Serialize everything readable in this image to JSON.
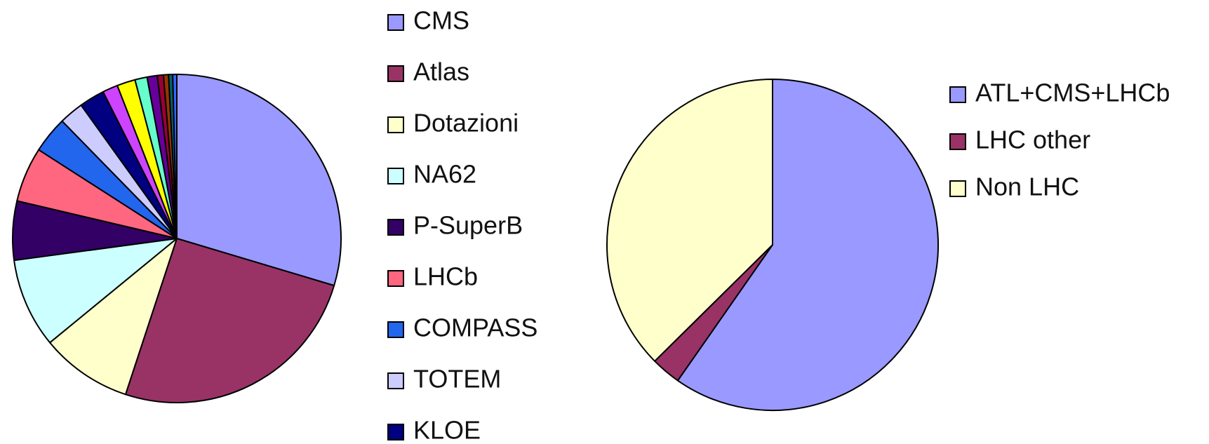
{
  "chart_data": [
    {
      "type": "pie",
      "categories": [
        "CMS",
        "Atlas",
        "Dotazioni",
        "NA62",
        "P-SuperB",
        "LHCb",
        "COMPASS",
        "TOTEM",
        "KLOE",
        null,
        null,
        null,
        null,
        null,
        null,
        null,
        null
      ],
      "values": [
        29.6,
        25.4,
        9,
        8.8,
        5.8,
        5.4,
        3.6,
        2.4,
        2.5,
        1.5,
        1.8,
        1.2,
        1.0,
        0.6,
        0.5,
        0.4,
        0.4
      ],
      "colors": [
        "#9999ff",
        "#993366",
        "#ffffcc",
        "#ccffff",
        "#330066",
        "#ff6680",
        "#2266ee",
        "#ccccff",
        "#000080",
        "#cc44ff",
        "#ffff00",
        "#66ffcc",
        "#660099",
        "#990033",
        "#993300",
        "#006666",
        "#3366ff"
      ]
    },
    {
      "type": "pie",
      "categories": [
        "ATL+CMS+LHCb",
        "LHC other",
        "Non LHC"
      ],
      "values": [
        59.7,
        2.9,
        37.4
      ],
      "colors": [
        "#9999ff",
        "#993366",
        "#ffffcc"
      ]
    }
  ]
}
